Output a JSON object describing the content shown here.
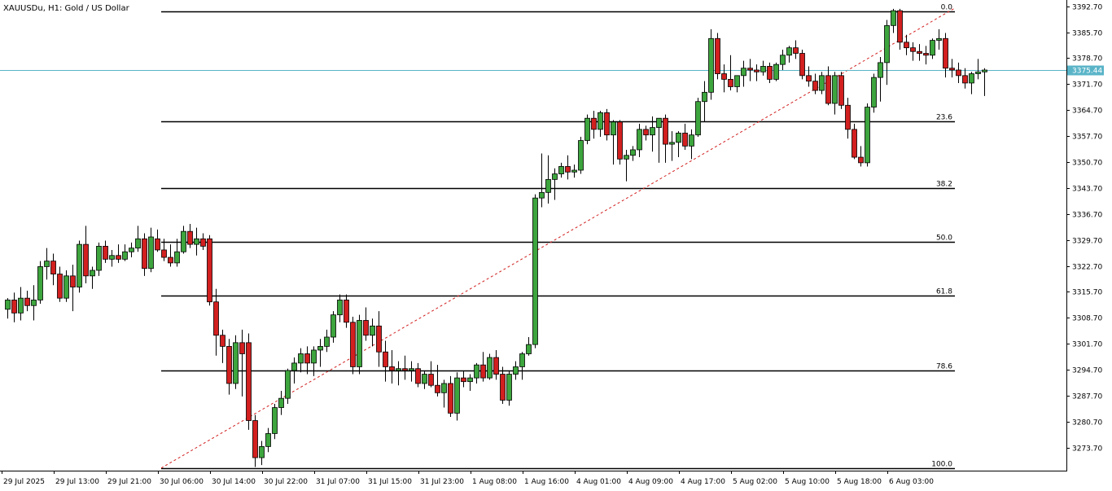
{
  "chart_data": {
    "type": "candlestick",
    "title": "XAUUSDu, H1:  Gold / US Dollar",
    "symbol": "XAUUSDu",
    "timeframe": "H1",
    "description": "Gold / US Dollar",
    "current_price": "3375.44",
    "colors": {
      "up_body": "#3da53d",
      "down_body": "#d21f1f",
      "wick": "#000000",
      "price_line": "#5ab4c8",
      "price_label_bg": "#5ab4c8",
      "fib_level": "#000000",
      "fib_trend": "#d21f1f",
      "axis": "#000000"
    },
    "y_axis": {
      "min": 3267.5,
      "max": 3393.5,
      "ticks": [
        "3392.70",
        "3385.70",
        "3378.70",
        "3371.70",
        "3364.70",
        "3357.70",
        "3350.70",
        "3343.70",
        "3336.70",
        "3329.70",
        "3322.70",
        "3315.70",
        "3308.70",
        "3301.70",
        "3294.70",
        "3287.70",
        "3280.70",
        "3273.70"
      ]
    },
    "x_axis": {
      "ticks": [
        {
          "label": "29 Jul 2025",
          "index": 0
        },
        {
          "label": "29 Jul 13:00",
          "index": 8
        },
        {
          "label": "29 Jul 21:00",
          "index": 16
        },
        {
          "label": "30 Jul 06:00",
          "index": 24
        },
        {
          "label": "30 Jul 14:00",
          "index": 32
        },
        {
          "label": "30 Jul 22:00",
          "index": 40
        },
        {
          "label": "31 Jul 07:00",
          "index": 48
        },
        {
          "label": "31 Jul 15:00",
          "index": 56
        },
        {
          "label": "31 Jul 23:00",
          "index": 64
        },
        {
          "label": "1 Aug 08:00",
          "index": 72
        },
        {
          "label": "1 Aug 16:00",
          "index": 80
        },
        {
          "label": "4 Aug 01:00",
          "index": 88
        },
        {
          "label": "4 Aug 09:00",
          "index": 96
        },
        {
          "label": "4 Aug 17:00",
          "index": 104
        },
        {
          "label": "5 Aug 02:00",
          "index": 112
        },
        {
          "label": "5 Aug 10:00",
          "index": 120
        },
        {
          "label": "5 Aug 18:00",
          "index": 128
        },
        {
          "label": "6 Aug 03:00",
          "index": 136
        }
      ]
    },
    "fibonacci": {
      "start_index": 24,
      "end_index": 145,
      "trend_from": 3268.2,
      "trend_to": 3392.2,
      "levels": [
        {
          "label": "0.0",
          "price": 3391.3
        },
        {
          "label": "23.6",
          "price": 3361.6
        },
        {
          "label": "38.2",
          "price": 3343.7
        },
        {
          "label": "50.0",
          "price": 3329.2
        },
        {
          "label": "61.8",
          "price": 3314.6
        },
        {
          "label": "78.6",
          "price": 3294.4
        },
        {
          "label": "100.0",
          "price": 3268.2
        }
      ]
    },
    "candles": [
      [
        3311.0,
        3314.0,
        3308.5,
        3313.5
      ],
      [
        3313.5,
        3315.5,
        3307.5,
        3310.0
      ],
      [
        3310.0,
        3317.0,
        3308.0,
        3314.0
      ],
      [
        3314.0,
        3316.0,
        3310.5,
        3312.0
      ],
      [
        3312.0,
        3317.5,
        3308.0,
        3313.5
      ],
      [
        3313.5,
        3324.0,
        3312.5,
        3322.5
      ],
      [
        3322.5,
        3327.5,
        3319.0,
        3324.0
      ],
      [
        3324.0,
        3326.0,
        3317.5,
        3320.5
      ],
      [
        3320.5,
        3322.5,
        3313.0,
        3314.0
      ],
      [
        3314.0,
        3321.5,
        3313.0,
        3320.0
      ],
      [
        3320.0,
        3323.0,
        3310.5,
        3317.0
      ],
      [
        3317.0,
        3329.5,
        3315.5,
        3328.5
      ],
      [
        3328.5,
        3333.5,
        3318.0,
        3320.0
      ],
      [
        3320.0,
        3322.5,
        3316.5,
        3321.5
      ],
      [
        3321.5,
        3329.0,
        3320.0,
        3328.0
      ],
      [
        3328.0,
        3329.5,
        3323.5,
        3324.5
      ],
      [
        3324.5,
        3327.0,
        3322.5,
        3325.5
      ],
      [
        3325.5,
        3328.5,
        3323.5,
        3324.5
      ],
      [
        3324.5,
        3328.5,
        3324.0,
        3326.5
      ],
      [
        3326.5,
        3329.0,
        3325.0,
        3327.5
      ],
      [
        3327.5,
        3333.5,
        3326.5,
        3330.0
      ],
      [
        3330.0,
        3331.5,
        3320.0,
        3322.0
      ],
      [
        3322.0,
        3333.0,
        3321.0,
        3330.5
      ],
      [
        3330.0,
        3332.5,
        3326.5,
        3327.0
      ],
      [
        3327.0,
        3330.0,
        3324.0,
        3325.0
      ],
      [
        3325.0,
        3328.5,
        3322.5,
        3323.5
      ],
      [
        3323.5,
        3330.0,
        3322.5,
        3326.5
      ],
      [
        3326.5,
        3333.5,
        3326.0,
        3332.0
      ],
      [
        3332.0,
        3334.0,
        3327.5,
        3328.5
      ],
      [
        3328.5,
        3333.0,
        3325.5,
        3330.0
      ],
      [
        3330.0,
        3331.5,
        3327.0,
        3328.0
      ],
      [
        3330.0,
        3331.0,
        3312.0,
        3313.0
      ],
      [
        3313.0,
        3316.5,
        3298.5,
        3304.0
      ],
      [
        3304.0,
        3305.5,
        3296.5,
        3301.0
      ],
      [
        3301.0,
        3303.0,
        3288.0,
        3291.0
      ],
      [
        3291.0,
        3304.0,
        3289.5,
        3302.0
      ],
      [
        3302.0,
        3305.5,
        3287.5,
        3299.0
      ],
      [
        3302.0,
        3304.5,
        3278.5,
        3281.0
      ],
      [
        3281.0,
        3282.5,
        3268.5,
        3271.0
      ],
      [
        3271.0,
        3275.5,
        3269.0,
        3274.0
      ],
      [
        3274.0,
        3279.0,
        3272.5,
        3277.5
      ],
      [
        3277.5,
        3285.5,
        3276.0,
        3284.5
      ],
      [
        3284.5,
        3289.0,
        3282.5,
        3287.0
      ],
      [
        3287.0,
        3295.0,
        3285.5,
        3294.5
      ],
      [
        3294.5,
        3298.0,
        3291.0,
        3296.5
      ],
      [
        3296.5,
        3300.5,
        3294.0,
        3299.0
      ],
      [
        3299.0,
        3301.0,
        3293.5,
        3296.5
      ],
      [
        3296.5,
        3301.0,
        3293.0,
        3300.0
      ],
      [
        3300.0,
        3303.0,
        3295.5,
        3301.0
      ],
      [
        3301.0,
        3305.5,
        3299.5,
        3303.5
      ],
      [
        3303.5,
        3310.5,
        3302.0,
        3309.5
      ],
      [
        3309.5,
        3315.0,
        3307.5,
        3313.5
      ],
      [
        3313.5,
        3315.0,
        3306.0,
        3307.5
      ],
      [
        3307.5,
        3309.0,
        3293.5,
        3295.5
      ],
      [
        3295.5,
        3309.5,
        3293.5,
        3308.0
      ],
      [
        3308.0,
        3311.5,
        3302.5,
        3304.0
      ],
      [
        3304.0,
        3308.5,
        3301.0,
        3306.5
      ],
      [
        3306.5,
        3310.5,
        3295.5,
        3299.5
      ],
      [
        3299.5,
        3302.5,
        3291.5,
        3295.5
      ],
      [
        3295.5,
        3300.0,
        3291.0,
        3294.5
      ],
      [
        3294.5,
        3297.0,
        3290.5,
        3295.0
      ],
      [
        3295.0,
        3298.5,
        3292.0,
        3294.5
      ],
      [
        3294.5,
        3297.0,
        3291.5,
        3295.0
      ],
      [
        3295.0,
        3296.5,
        3290.0,
        3291.0
      ],
      [
        3291.0,
        3294.5,
        3289.5,
        3293.5
      ],
      [
        3293.5,
        3297.0,
        3290.0,
        3290.5
      ],
      [
        3290.5,
        3296.0,
        3287.5,
        3288.5
      ],
      [
        3288.5,
        3292.0,
        3284.5,
        3291.0
      ],
      [
        3291.0,
        3293.0,
        3282.0,
        3283.0
      ],
      [
        3283.0,
        3294.0,
        3281.0,
        3292.5
      ],
      [
        3292.5,
        3294.5,
        3290.0,
        3291.5
      ],
      [
        3291.5,
        3293.5,
        3289.0,
        3292.5
      ],
      [
        3292.5,
        3296.5,
        3291.0,
        3296.0
      ],
      [
        3296.0,
        3299.5,
        3291.5,
        3292.5
      ],
      [
        3292.5,
        3299.0,
        3292.0,
        3298.0
      ],
      [
        3298.0,
        3300.0,
        3292.0,
        3293.5
      ],
      [
        3293.5,
        3295.5,
        3285.5,
        3286.5
      ],
      [
        3286.5,
        3294.5,
        3285.0,
        3293.5
      ],
      [
        3293.5,
        3297.0,
        3292.0,
        3295.5
      ],
      [
        3295.5,
        3299.5,
        3292.0,
        3299.0
      ],
      [
        3299.0,
        3303.5,
        3298.5,
        3301.5
      ],
      [
        3301.5,
        3342.0,
        3300.5,
        3341.0
      ],
      [
        3341.0,
        3353.0,
        3338.5,
        3342.5
      ],
      [
        3342.5,
        3352.5,
        3339.5,
        3346.0
      ],
      [
        3346.0,
        3349.0,
        3340.5,
        3347.5
      ],
      [
        3347.5,
        3350.5,
        3346.5,
        3349.5
      ],
      [
        3349.5,
        3352.5,
        3346.0,
        3348.0
      ],
      [
        3348.0,
        3350.0,
        3346.5,
        3348.5
      ],
      [
        3348.5,
        3357.5,
        3347.5,
        3356.5
      ],
      [
        3356.5,
        3363.5,
        3355.5,
        3362.5
      ],
      [
        3362.5,
        3364.5,
        3357.0,
        3359.5
      ],
      [
        3359.5,
        3364.5,
        3357.5,
        3364.0
      ],
      [
        3364.0,
        3365.0,
        3356.5,
        3358.0
      ],
      [
        3358.0,
        3362.0,
        3350.0,
        3361.5
      ],
      [
        3361.5,
        3362.0,
        3350.0,
        3351.5
      ],
      [
        3351.5,
        3354.0,
        3345.5,
        3352.5
      ],
      [
        3352.5,
        3355.0,
        3351.0,
        3354.0
      ],
      [
        3354.0,
        3361.0,
        3352.0,
        3359.5
      ],
      [
        3359.5,
        3360.5,
        3356.5,
        3358.0
      ],
      [
        3358.0,
        3363.0,
        3353.5,
        3360.0
      ],
      [
        3360.0,
        3362.0,
        3350.5,
        3362.5
      ],
      [
        3362.5,
        3363.5,
        3350.5,
        3355.5
      ],
      [
        3355.5,
        3359.0,
        3351.0,
        3356.0
      ],
      [
        3356.0,
        3359.0,
        3352.0,
        3358.5
      ],
      [
        3358.5,
        3361.0,
        3354.0,
        3355.0
      ],
      [
        3355.0,
        3359.5,
        3351.5,
        3358.0
      ],
      [
        3358.0,
        3368.0,
        3357.5,
        3367.0
      ],
      [
        3367.0,
        3372.5,
        3361.5,
        3369.5
      ],
      [
        3369.5,
        3386.5,
        3367.5,
        3384.0
      ],
      [
        3384.0,
        3385.5,
        3373.0,
        3374.5
      ],
      [
        3374.5,
        3377.0,
        3369.5,
        3373.0
      ],
      [
        3373.0,
        3379.5,
        3370.0,
        3371.0
      ],
      [
        3371.0,
        3374.0,
        3369.5,
        3374.0
      ],
      [
        3374.0,
        3378.0,
        3371.0,
        3376.0
      ],
      [
        3376.0,
        3378.5,
        3372.5,
        3375.5
      ],
      [
        3375.5,
        3377.0,
        3372.5,
        3375.0
      ],
      [
        3375.0,
        3378.0,
        3374.0,
        3376.5
      ],
      [
        3376.5,
        3377.5,
        3372.0,
        3373.0
      ],
      [
        3373.0,
        3377.5,
        3372.5,
        3377.0
      ],
      [
        3377.0,
        3381.0,
        3375.5,
        3379.5
      ],
      [
        3379.5,
        3382.0,
        3377.5,
        3381.5
      ],
      [
        3381.5,
        3383.5,
        3378.5,
        3380.0
      ],
      [
        3380.0,
        3381.0,
        3373.0,
        3374.0
      ],
      [
        3374.0,
        3376.5,
        3371.0,
        3372.5
      ],
      [
        3372.5,
        3374.5,
        3369.0,
        3370.0
      ],
      [
        3370.0,
        3375.0,
        3369.0,
        3374.0
      ],
      [
        3374.0,
        3376.5,
        3366.0,
        3366.5
      ],
      [
        3366.5,
        3375.0,
        3363.5,
        3374.0
      ],
      [
        3374.0,
        3375.0,
        3365.0,
        3366.0
      ],
      [
        3366.0,
        3368.0,
        3357.0,
        3359.5
      ],
      [
        3359.5,
        3361.0,
        3351.5,
        3352.0
      ],
      [
        3352.0,
        3355.0,
        3349.5,
        3350.5
      ],
      [
        3350.5,
        3366.5,
        3349.5,
        3365.5
      ],
      [
        3365.5,
        3374.5,
        3364.0,
        3373.5
      ],
      [
        3373.5,
        3379.0,
        3367.0,
        3377.5
      ],
      [
        3377.5,
        3389.0,
        3371.5,
        3387.5
      ],
      [
        3387.5,
        3392.0,
        3385.5,
        3391.5
      ],
      [
        3391.5,
        3392.0,
        3381.0,
        3383.0
      ],
      [
        3383.0,
        3385.0,
        3379.5,
        3381.5
      ],
      [
        3381.5,
        3383.0,
        3378.0,
        3380.5
      ],
      [
        3380.5,
        3382.5,
        3378.0,
        3380.0
      ],
      [
        3380.0,
        3382.0,
        3377.0,
        3379.5
      ],
      [
        3379.5,
        3384.0,
        3378.5,
        3383.5
      ],
      [
        3383.5,
        3386.5,
        3381.0,
        3384.0
      ],
      [
        3384.0,
        3385.5,
        3373.5,
        3376.0
      ],
      [
        3376.0,
        3378.5,
        3373.5,
        3375.5
      ],
      [
        3375.5,
        3377.5,
        3372.0,
        3374.0
      ],
      [
        3374.0,
        3376.0,
        3370.5,
        3372.0
      ],
      [
        3372.0,
        3375.0,
        3369.0,
        3374.5
      ],
      [
        3374.5,
        3378.5,
        3373.0,
        3375.0
      ],
      [
        3375.0,
        3376.0,
        3368.5,
        3375.5
      ]
    ]
  }
}
